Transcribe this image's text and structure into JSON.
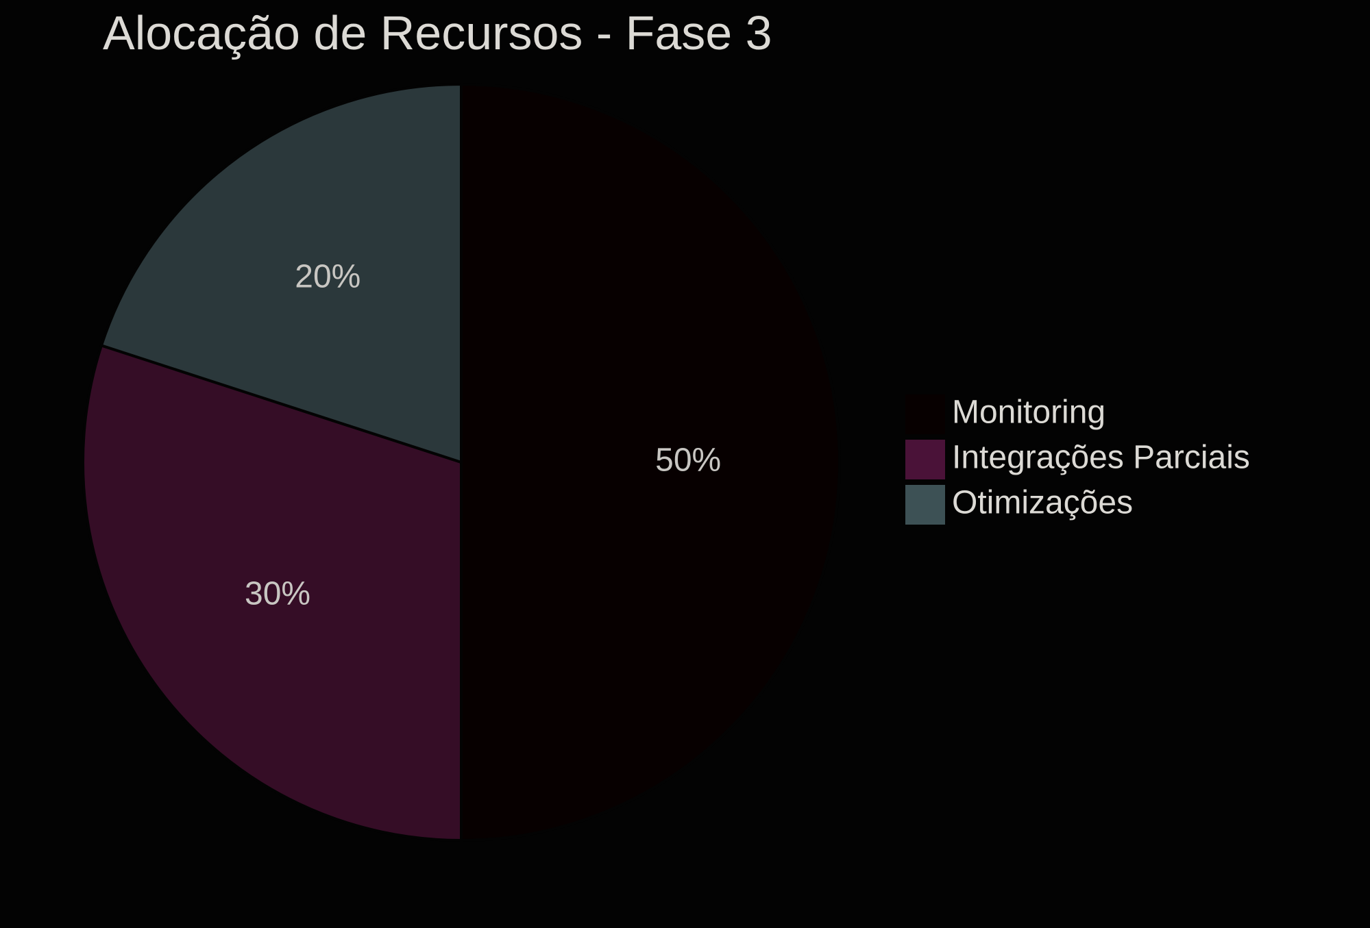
{
  "chart_data": {
    "type": "pie",
    "title": "Alocação de Recursos - Fase 3",
    "categories": [
      "Monitoring",
      "Integrações Parciais",
      "Otimizações"
    ],
    "values": [
      50,
      30,
      20
    ],
    "value_labels": [
      "50%",
      "30%",
      "20%"
    ],
    "colors": [
      "#070000",
      "#350d26",
      "#2b383b"
    ],
    "legend_colors": [
      "#070000",
      "#4a1238",
      "#3d5155"
    ],
    "start_angle_deg": 90,
    "direction": "clockwise",
    "legend_position": "right",
    "background": "#030303",
    "text_color": "#dcdad5",
    "separator_color": "#030303"
  }
}
